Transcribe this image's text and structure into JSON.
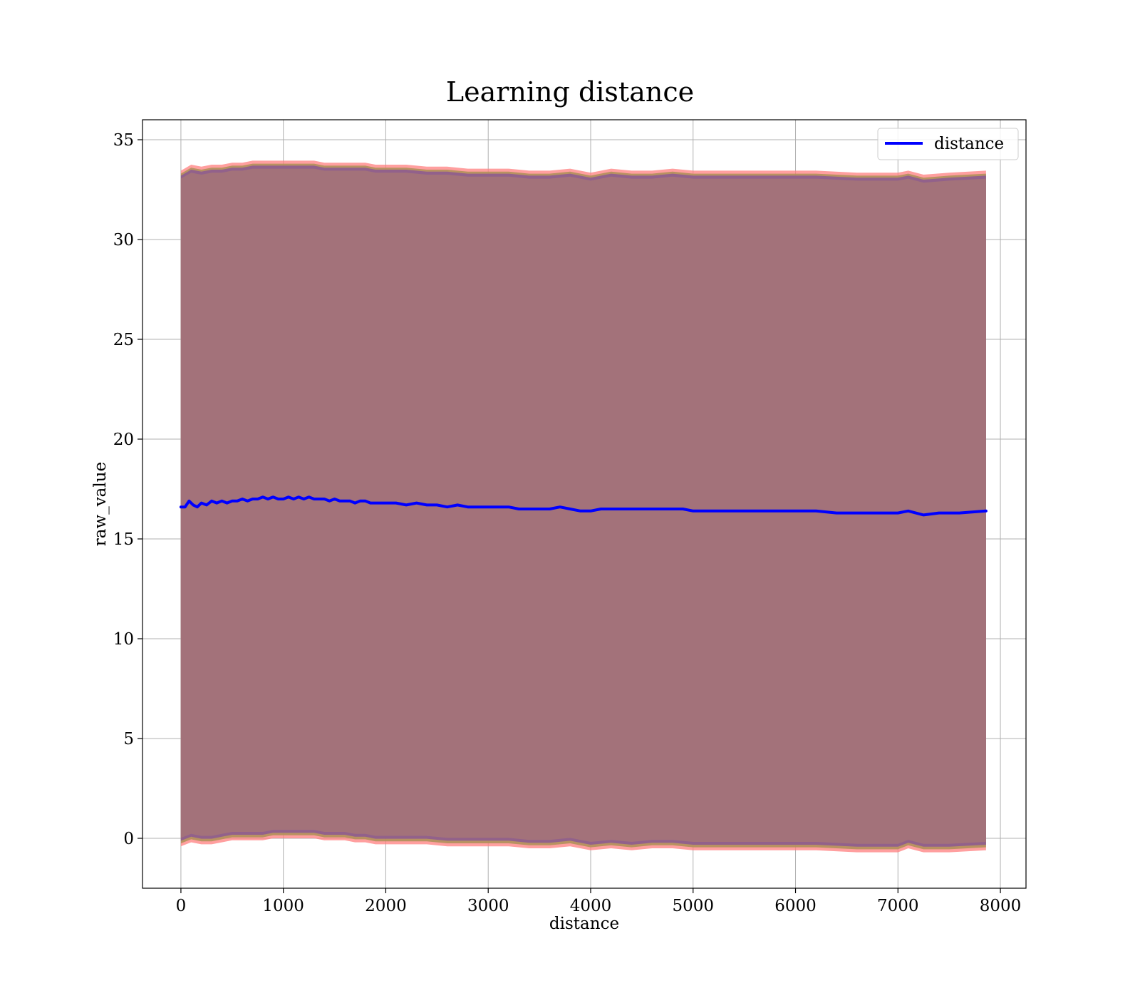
{
  "chart_data": {
    "type": "line",
    "title": "Learning distance",
    "xlabel": "distance",
    "ylabel": "raw_value",
    "xlim": [
      -375,
      8250
    ],
    "ylim": [
      -2.5,
      36
    ],
    "xticks": [
      0,
      1000,
      2000,
      3000,
      4000,
      5000,
      6000,
      7000,
      8000
    ],
    "yticks": [
      0,
      5,
      10,
      15,
      20,
      25,
      30,
      35
    ],
    "grid": true,
    "legend_position": "top-right",
    "colors": {
      "line": "#0000ff",
      "band": "#a3727a",
      "band_edge_red": "#ff7f7f",
      "band_edge_olive": "#b0905a",
      "band_edge_purple": "#8e5c90",
      "grid": "#b0b0b0"
    },
    "series": [
      {
        "name": "distance",
        "x": [
          0,
          40,
          80,
          120,
          160,
          200,
          250,
          300,
          350,
          400,
          450,
          500,
          550,
          600,
          650,
          700,
          750,
          800,
          850,
          900,
          950,
          1000,
          1050,
          1100,
          1150,
          1200,
          1250,
          1300,
          1350,
          1400,
          1450,
          1500,
          1550,
          1600,
          1650,
          1700,
          1750,
          1800,
          1850,
          1900,
          1950,
          2000,
          2100,
          2200,
          2300,
          2400,
          2500,
          2600,
          2700,
          2800,
          2900,
          3000,
          3100,
          3200,
          3300,
          3400,
          3500,
          3600,
          3700,
          3800,
          3900,
          4000,
          4100,
          4200,
          4300,
          4400,
          4500,
          4600,
          4700,
          4800,
          4900,
          5000,
          5200,
          5400,
          5600,
          5800,
          6000,
          6200,
          6400,
          6600,
          6800,
          7000,
          7100,
          7250,
          7400,
          7600,
          7860
        ],
        "y": [
          16.6,
          16.6,
          16.9,
          16.7,
          16.6,
          16.8,
          16.7,
          16.9,
          16.8,
          16.9,
          16.8,
          16.9,
          16.9,
          17.0,
          16.9,
          17.0,
          17.0,
          17.1,
          17.0,
          17.1,
          17.0,
          17.0,
          17.1,
          17.0,
          17.1,
          17.0,
          17.1,
          17.0,
          17.0,
          17.0,
          16.9,
          17.0,
          16.9,
          16.9,
          16.9,
          16.8,
          16.9,
          16.9,
          16.8,
          16.8,
          16.8,
          16.8,
          16.8,
          16.7,
          16.8,
          16.7,
          16.7,
          16.6,
          16.7,
          16.6,
          16.6,
          16.6,
          16.6,
          16.6,
          16.5,
          16.5,
          16.5,
          16.5,
          16.6,
          16.5,
          16.4,
          16.4,
          16.5,
          16.5,
          16.5,
          16.5,
          16.5,
          16.5,
          16.5,
          16.5,
          16.5,
          16.4,
          16.4,
          16.4,
          16.4,
          16.4,
          16.4,
          16.4,
          16.3,
          16.3,
          16.3,
          16.3,
          16.4,
          16.2,
          16.3,
          16.3,
          16.4
        ]
      }
    ],
    "band": {
      "x": [
        0,
        100,
        200,
        300,
        400,
        500,
        600,
        700,
        800,
        900,
        1000,
        1100,
        1200,
        1300,
        1400,
        1500,
        1600,
        1700,
        1800,
        1900,
        2000,
        2200,
        2400,
        2600,
        2800,
        3000,
        3200,
        3400,
        3600,
        3800,
        4000,
        4200,
        4400,
        4600,
        4800,
        5000,
        5400,
        5800,
        6200,
        6600,
        7000,
        7100,
        7250,
        7500,
        7860
      ],
      "upper": [
        33.3,
        33.6,
        33.5,
        33.6,
        33.6,
        33.7,
        33.7,
        33.8,
        33.8,
        33.8,
        33.8,
        33.8,
        33.8,
        33.8,
        33.7,
        33.7,
        33.7,
        33.7,
        33.7,
        33.6,
        33.6,
        33.6,
        33.5,
        33.5,
        33.4,
        33.4,
        33.4,
        33.3,
        33.3,
        33.4,
        33.2,
        33.4,
        33.3,
        33.3,
        33.4,
        33.3,
        33.3,
        33.3,
        33.3,
        33.2,
        33.2,
        33.3,
        33.1,
        33.2,
        33.3
      ],
      "lower": [
        -0.2,
        0.0,
        -0.1,
        -0.1,
        0.0,
        0.1,
        0.1,
        0.1,
        0.1,
        0.2,
        0.2,
        0.2,
        0.2,
        0.2,
        0.1,
        0.1,
        0.1,
        0.0,
        0.0,
        -0.1,
        -0.1,
        -0.1,
        -0.1,
        -0.2,
        -0.2,
        -0.2,
        -0.2,
        -0.3,
        -0.3,
        -0.2,
        -0.4,
        -0.3,
        -0.4,
        -0.3,
        -0.3,
        -0.4,
        -0.4,
        -0.4,
        -0.4,
        -0.5,
        -0.5,
        -0.3,
        -0.5,
        -0.5,
        -0.4
      ]
    }
  }
}
